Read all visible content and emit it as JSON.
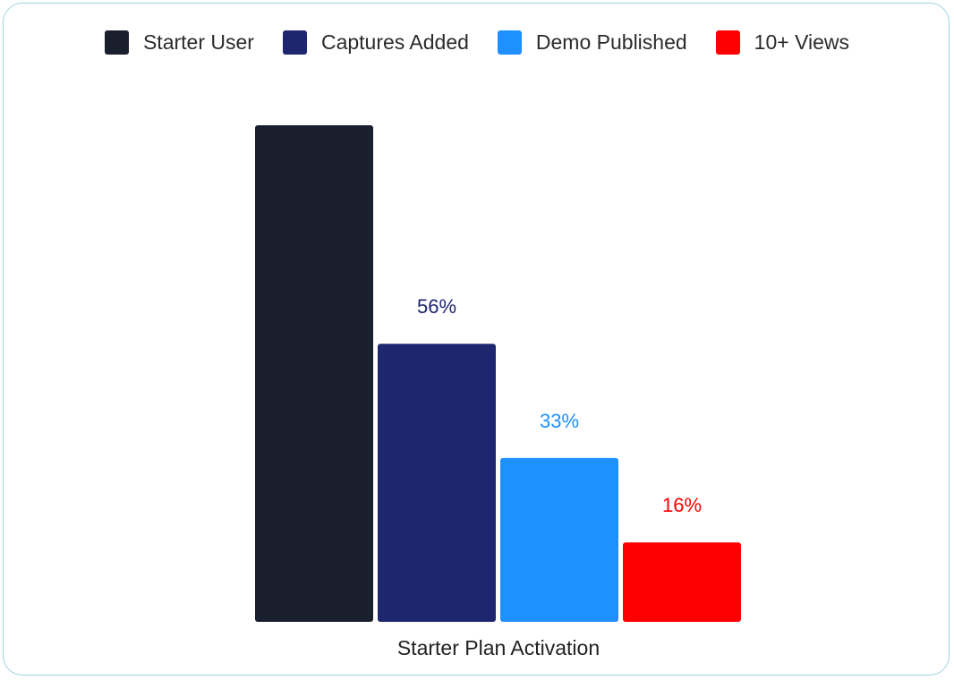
{
  "chart_data": {
    "type": "bar",
    "categories": [
      "Starter Plan Activation"
    ],
    "xlabel": "Starter Plan Activation",
    "ylim": [
      0,
      100
    ],
    "legend_position": "top",
    "grid": false,
    "series": [
      {
        "name": "Starter User",
        "values": [
          100
        ],
        "label": "",
        "color": "#1a1f2e"
      },
      {
        "name": "Captures Added",
        "values": [
          56
        ],
        "label": "56%",
        "color": "#1f2670"
      },
      {
        "name": "Demo Published",
        "values": [
          33
        ],
        "label": "33%",
        "color": "#1e90ff"
      },
      {
        "name": "10+ Views",
        "values": [
          16
        ],
        "label": "16%",
        "color": "#ff0000"
      }
    ]
  }
}
